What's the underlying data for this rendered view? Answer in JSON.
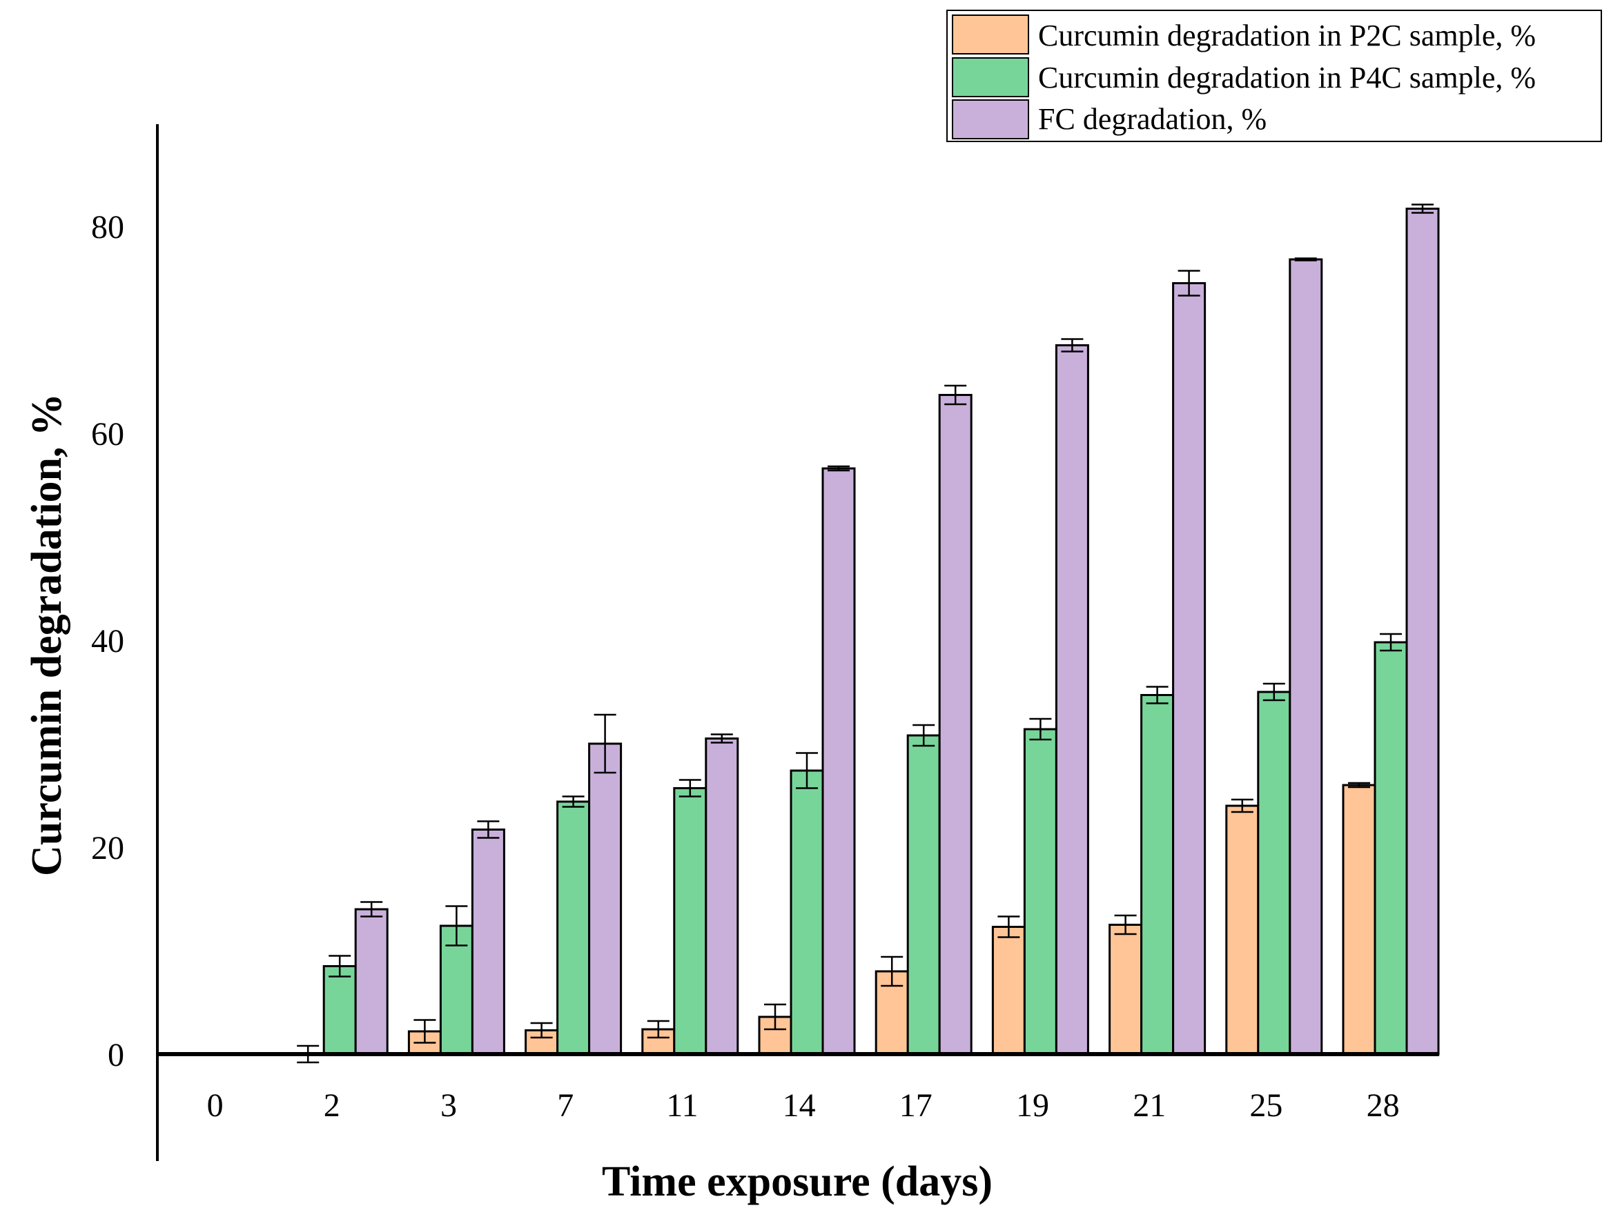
{
  "chart_data": {
    "type": "bar",
    "title": "",
    "xlabel": "Time exposure (days)",
    "ylabel": "Curcumin degradation, %",
    "categories": [
      "0",
      "2",
      "3",
      "7",
      "11",
      "14",
      "17",
      "19",
      "21",
      "25",
      "28"
    ],
    "ylim": [
      -10,
      90
    ],
    "yticks": [
      0,
      20,
      40,
      60,
      80
    ],
    "grid": false,
    "legend_position": "top-right",
    "series": [
      {
        "name": "Curcumin degradation in P2C sample, %",
        "color": "#FFC596",
        "values": [
          0,
          0,
          2.2,
          2.3,
          2.4,
          3.6,
          8.0,
          12.3,
          12.5,
          24.0,
          26.0
        ],
        "errors": [
          0,
          0.8,
          1.1,
          0.7,
          0.8,
          1.2,
          1.4,
          1.0,
          0.9,
          0.6,
          0.2
        ]
      },
      {
        "name": "Curcumin degradation in P4C sample, %",
        "color": "#78D59A",
        "values": [
          0,
          8.5,
          12.4,
          24.4,
          25.7,
          27.4,
          30.8,
          31.4,
          34.7,
          35.0,
          39.8
        ],
        "errors": [
          0,
          1.0,
          1.9,
          0.5,
          0.8,
          1.7,
          1.0,
          1.0,
          0.8,
          0.8,
          0.8
        ]
      },
      {
        "name": "FC degradation, %",
        "color": "#C9B0DA",
        "values": [
          0,
          14.0,
          21.7,
          30.0,
          30.5,
          56.6,
          63.7,
          68.5,
          74.5,
          76.8,
          81.7
        ],
        "errors": [
          0,
          0.7,
          0.8,
          2.8,
          0.4,
          0.2,
          0.9,
          0.6,
          1.2,
          0.1,
          0.4
        ]
      }
    ]
  }
}
